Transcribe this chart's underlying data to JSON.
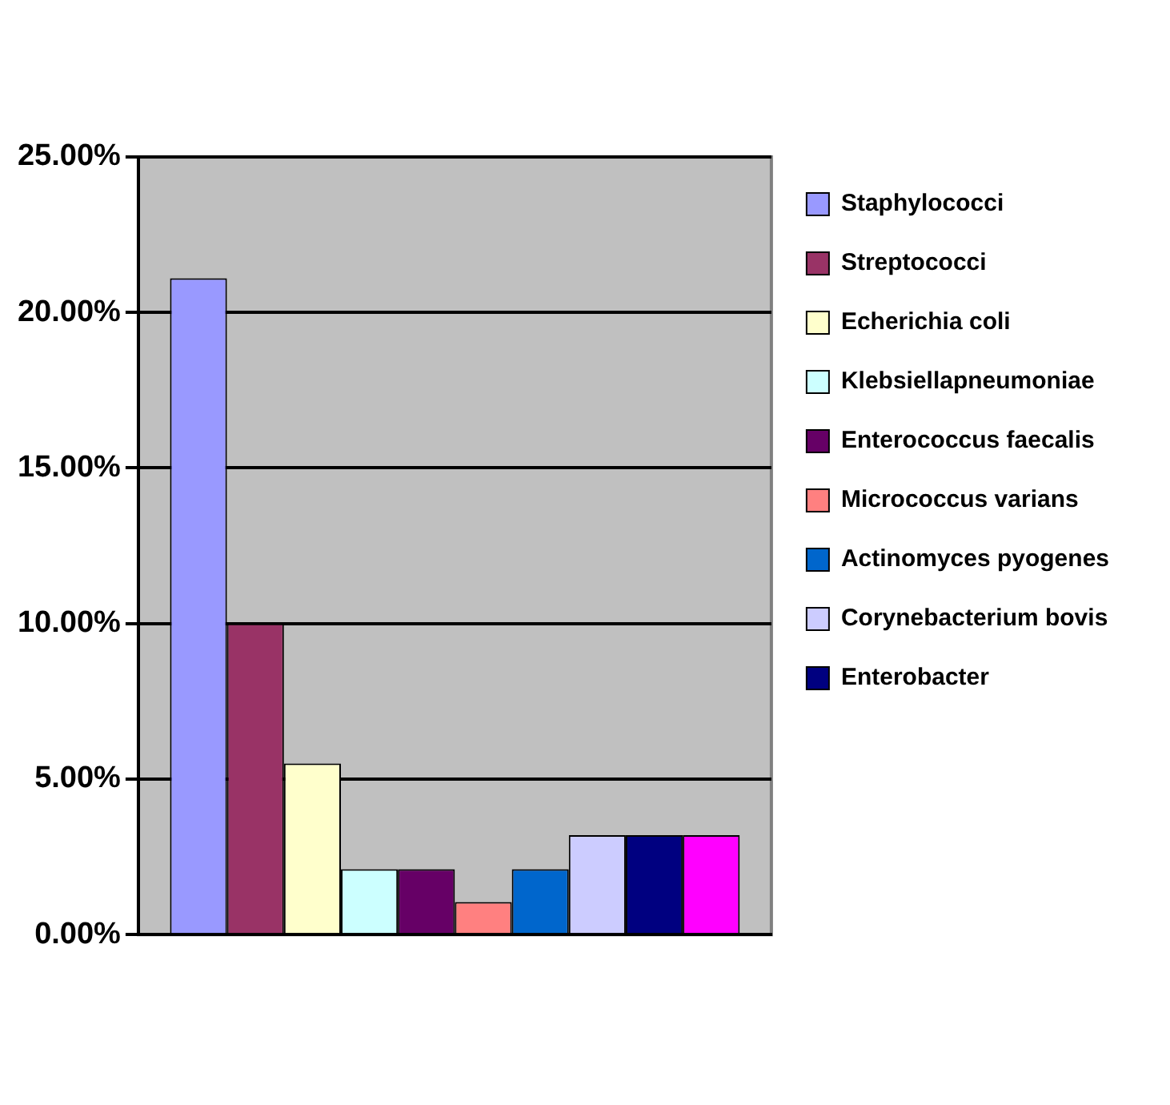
{
  "chart_data": {
    "type": "bar",
    "categories": [
      null
    ],
    "series": [
      {
        "name": "Staphylococci",
        "color": "#9999ff",
        "values": [
          21.1
        ]
      },
      {
        "name": "Streptococci",
        "color": "#993366",
        "values": [
          10
        ]
      },
      {
        "name": "Echerichia coli",
        "color": "#ffffcc",
        "values": [
          5.5
        ]
      },
      {
        "name": "Klebsiellapneumoniae",
        "color": "#ccffff",
        "values": [
          2.1
        ]
      },
      {
        "name": "Enterococcus faecalis",
        "color": "#660066",
        "values": [
          2.1
        ]
      },
      {
        "name": "Micrococcus varians",
        "color": "#ff8080",
        "values": [
          1.05
        ]
      },
      {
        "name": "Actinomyces pyogenes",
        "color": "#0066cc",
        "values": [
          2.1
        ]
      },
      {
        "name": "Corynebacterium bovis",
        "color": "#ccccff",
        "values": [
          3.2
        ]
      },
      {
        "name": "Enterobacter",
        "color": "#000080",
        "values": [
          3.2
        ]
      },
      {
        "color": "#ff00ff",
        "values": [
          3.2
        ]
      }
    ],
    "ylim": [
      0,
      25
    ],
    "yticks": [
      {
        "value": 0,
        "label": "0.00%"
      },
      {
        "value": 5,
        "label": "5.00%"
      },
      {
        "value": 10,
        "label": "10.00%"
      },
      {
        "value": 15,
        "label": "15.00%"
      },
      {
        "value": 20,
        "label": "20.00%"
      },
      {
        "value": 25,
        "label": "25.00%"
      }
    ],
    "grid": "y",
    "legend": "right"
  }
}
